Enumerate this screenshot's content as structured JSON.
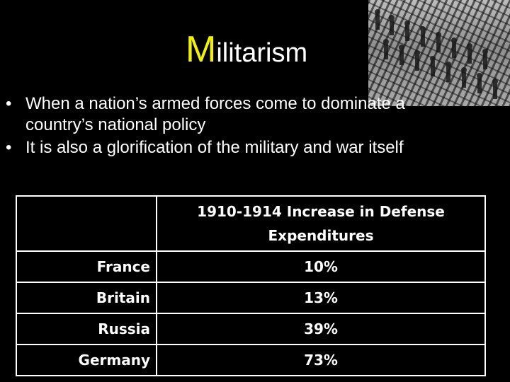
{
  "slide": {
    "title_first_letter": "M",
    "title_rest": "ilitarism",
    "bullets": [
      "When a nation’s armed forces come to dominate a country’s national policy",
      "It is also a glorification of the military and war itself"
    ],
    "photo": {
      "icon": "marching-soldiers-photo"
    },
    "colors": {
      "background": "#000000",
      "title_accent": "#f2f200",
      "text": "#ffffff"
    }
  },
  "table": {
    "header": "1910-1914 Increase in Defense Expenditures",
    "rows": [
      {
        "country": "France",
        "increase": "10%"
      },
      {
        "country": "Britain",
        "increase": "13%"
      },
      {
        "country": "Russia",
        "increase": "39%"
      },
      {
        "country": "Germany",
        "increase": "73%"
      }
    ]
  }
}
